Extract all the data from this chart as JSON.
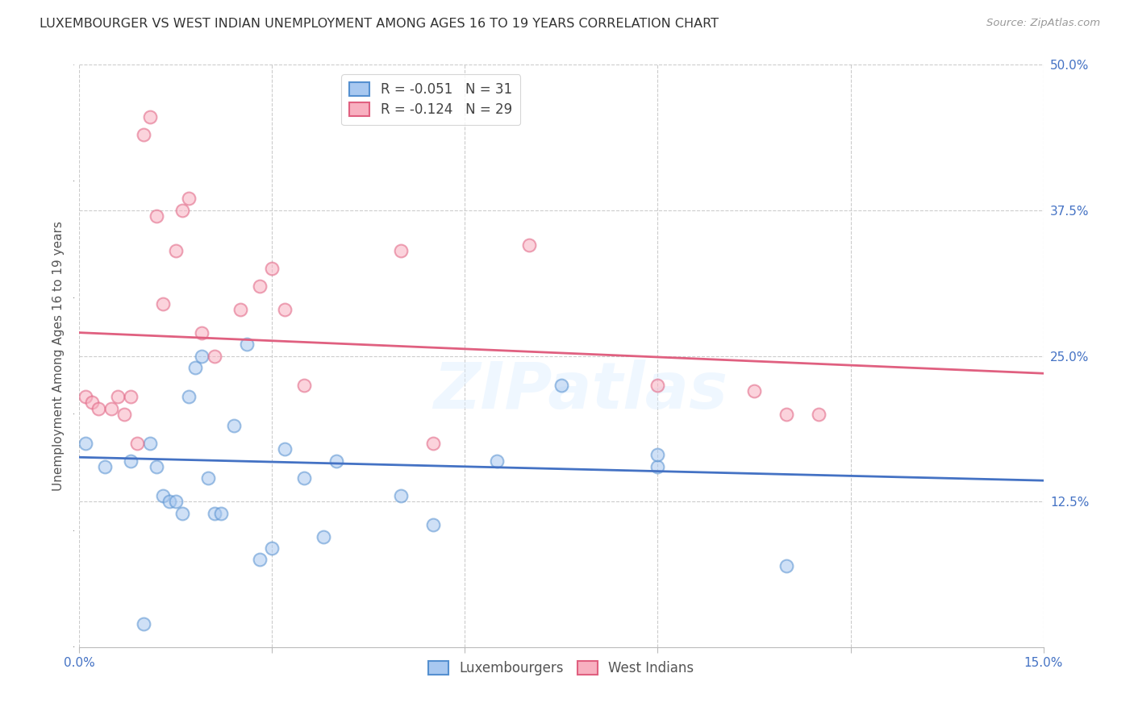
{
  "title": "LUXEMBOURGER VS WEST INDIAN UNEMPLOYMENT AMONG AGES 16 TO 19 YEARS CORRELATION CHART",
  "source": "Source: ZipAtlas.com",
  "ylabel": "Unemployment Among Ages 16 to 19 years",
  "xlim": [
    0.0,
    0.15
  ],
  "ylim": [
    0.0,
    0.5
  ],
  "xticks": [
    0.0,
    0.03,
    0.06,
    0.09,
    0.12,
    0.15
  ],
  "xticklabels": [
    "0.0%",
    "",
    "",
    "",
    "",
    "15.0%"
  ],
  "yticks_right": [
    0.0,
    0.125,
    0.25,
    0.375,
    0.5
  ],
  "yticklabels_right": [
    "",
    "12.5%",
    "25.0%",
    "37.5%",
    "50.0%"
  ],
  "lux_color": "#a8c8f0",
  "wi_color": "#f8b0c0",
  "lux_edge_color": "#5590d0",
  "wi_edge_color": "#e06080",
  "lux_line_color": "#4472c4",
  "wi_line_color": "#e06080",
  "lux_R": "-0.051",
  "lux_N": "31",
  "wi_R": "-0.124",
  "wi_N": "29",
  "watermark": "ZIPatlas",
  "lux_scatter_x": [
    0.001,
    0.004,
    0.008,
    0.01,
    0.011,
    0.012,
    0.013,
    0.014,
    0.015,
    0.016,
    0.017,
    0.018,
    0.019,
    0.02,
    0.021,
    0.022,
    0.024,
    0.026,
    0.028,
    0.03,
    0.032,
    0.035,
    0.038,
    0.04,
    0.05,
    0.055,
    0.065,
    0.075,
    0.09,
    0.09,
    0.11
  ],
  "lux_scatter_y": [
    0.175,
    0.155,
    0.16,
    0.02,
    0.175,
    0.155,
    0.13,
    0.125,
    0.125,
    0.115,
    0.215,
    0.24,
    0.25,
    0.145,
    0.115,
    0.115,
    0.19,
    0.26,
    0.075,
    0.085,
    0.17,
    0.145,
    0.095,
    0.16,
    0.13,
    0.105,
    0.16,
    0.225,
    0.155,
    0.165,
    0.07
  ],
  "wi_scatter_x": [
    0.001,
    0.002,
    0.003,
    0.005,
    0.006,
    0.007,
    0.008,
    0.009,
    0.01,
    0.011,
    0.012,
    0.013,
    0.015,
    0.016,
    0.017,
    0.019,
    0.021,
    0.025,
    0.028,
    0.03,
    0.032,
    0.035,
    0.05,
    0.055,
    0.07,
    0.09,
    0.105,
    0.11,
    0.115
  ],
  "wi_scatter_y": [
    0.215,
    0.21,
    0.205,
    0.205,
    0.215,
    0.2,
    0.215,
    0.175,
    0.44,
    0.455,
    0.37,
    0.295,
    0.34,
    0.375,
    0.385,
    0.27,
    0.25,
    0.29,
    0.31,
    0.325,
    0.29,
    0.225,
    0.34,
    0.175,
    0.345,
    0.225,
    0.22,
    0.2,
    0.2
  ],
  "lux_trend_x": [
    0.0,
    0.15
  ],
  "lux_trend_y": [
    0.163,
    0.143
  ],
  "wi_trend_x": [
    0.0,
    0.15
  ],
  "wi_trend_y": [
    0.27,
    0.235
  ],
  "background_color": "#ffffff",
  "grid_color": "#cccccc",
  "title_fontsize": 11.5,
  "label_fontsize": 11,
  "tick_fontsize": 11,
  "legend_fontsize": 12,
  "scatter_size": 130,
  "scatter_alpha": 0.55,
  "scatter_linewidth": 1.5
}
